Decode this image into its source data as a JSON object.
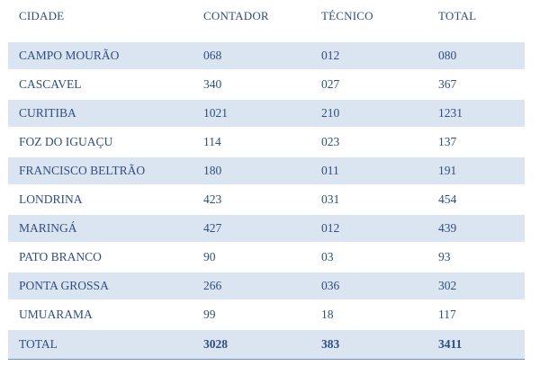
{
  "table": {
    "headers": [
      "CIDADE",
      "CONTADOR",
      "TÉCNICO",
      "TOTAL"
    ],
    "rows": [
      [
        "CAMPO MOURÃO",
        "068",
        "012",
        "080"
      ],
      [
        "CASCAVEL",
        "340",
        "027",
        "367"
      ],
      [
        "CURITIBA",
        "1021",
        "210",
        "1231"
      ],
      [
        "FOZ DO IGUAÇU",
        "114",
        "023",
        "137"
      ],
      [
        "FRANCISCO BELTRÃO",
        "180",
        "011",
        "191"
      ],
      [
        "LONDRINA",
        "423",
        "031",
        "454"
      ],
      [
        "MARINGÁ",
        "427",
        "012",
        "439"
      ],
      [
        "PATO BRANCO",
        "90",
        "03",
        "93"
      ],
      [
        "PONTA GROSSA",
        "266",
        "036",
        "302"
      ],
      [
        "UMUARAMA",
        "99",
        "18",
        "117"
      ]
    ],
    "total": [
      "TOTAL",
      "3028",
      "383",
      "3411"
    ]
  },
  "colors": {
    "text": "#2f4f7f",
    "row_shade": "#dbe4f1",
    "rule": "#6f8fc0"
  }
}
